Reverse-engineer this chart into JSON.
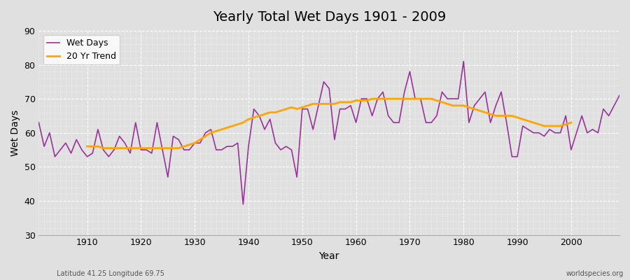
{
  "title": "Yearly Total Wet Days 1901 - 2009",
  "xlabel": "Year",
  "ylabel": "Wet Days",
  "footnote_left": "Latitude 41.25 Longitude 69.75",
  "footnote_right": "worldspecies.org",
  "legend_wet_days": "Wet Days",
  "legend_trend": "20 Yr Trend",
  "line_color_wet": "#993399",
  "line_color_trend": "#FFA500",
  "bg_color": "#e0e0e0",
  "plot_bg_color": "#e0e0e0",
  "ylim": [
    30,
    90
  ],
  "xlim": [
    1901,
    2009
  ],
  "yticks": [
    30,
    40,
    50,
    60,
    70,
    80,
    90
  ],
  "xticks": [
    1910,
    1920,
    1930,
    1940,
    1950,
    1960,
    1970,
    1980,
    1990,
    2000
  ],
  "years": [
    1901,
    1902,
    1903,
    1904,
    1905,
    1906,
    1907,
    1908,
    1909,
    1910,
    1911,
    1912,
    1913,
    1914,
    1915,
    1916,
    1917,
    1918,
    1919,
    1920,
    1921,
    1922,
    1923,
    1924,
    1925,
    1926,
    1927,
    1928,
    1929,
    1930,
    1931,
    1932,
    1933,
    1934,
    1935,
    1936,
    1937,
    1938,
    1939,
    1940,
    1941,
    1942,
    1943,
    1944,
    1945,
    1946,
    1947,
    1948,
    1949,
    1950,
    1951,
    1952,
    1953,
    1954,
    1955,
    1956,
    1957,
    1958,
    1959,
    1960,
    1961,
    1962,
    1963,
    1964,
    1965,
    1966,
    1967,
    1968,
    1969,
    1970,
    1971,
    1972,
    1973,
    1974,
    1975,
    1976,
    1977,
    1978,
    1979,
    1980,
    1981,
    1982,
    1983,
    1984,
    1985,
    1986,
    1987,
    1988,
    1989,
    1990,
    1991,
    1992,
    1993,
    1994,
    1995,
    1996,
    1997,
    1998,
    1999,
    2000,
    2001,
    2002,
    2003,
    2004,
    2005,
    2006,
    2007,
    2008,
    2009
  ],
  "wet_days": [
    63,
    56,
    60,
    53,
    55,
    57,
    54,
    58,
    55,
    53,
    54,
    61,
    55,
    53,
    55,
    59,
    57,
    54,
    63,
    55,
    55,
    54,
    63,
    55,
    47,
    59,
    58,
    55,
    55,
    57,
    57,
    60,
    61,
    55,
    55,
    56,
    56,
    57,
    39,
    56,
    67,
    65,
    61,
    64,
    57,
    55,
    56,
    55,
    47,
    67,
    67,
    61,
    68,
    75,
    73,
    58,
    67,
    67,
    68,
    63,
    70,
    70,
    65,
    70,
    72,
    65,
    63,
    63,
    72,
    78,
    70,
    70,
    63,
    63,
    65,
    72,
    70,
    70,
    70,
    81,
    63,
    68,
    70,
    72,
    63,
    68,
    72,
    63,
    53,
    53,
    62,
    61,
    60,
    60,
    59,
    61,
    60,
    60,
    65,
    55,
    60,
    65,
    60,
    61,
    60,
    67,
    65,
    68,
    71
  ],
  "trend_years": [
    1910,
    1911,
    1912,
    1913,
    1914,
    1915,
    1916,
    1917,
    1918,
    1919,
    1920,
    1921,
    1922,
    1923,
    1924,
    1925,
    1926,
    1927,
    1928,
    1929,
    1930,
    1931,
    1932,
    1933,
    1934,
    1935,
    1936,
    1937,
    1938,
    1939,
    1940,
    1941,
    1942,
    1943,
    1944,
    1945,
    1946,
    1947,
    1948,
    1949,
    1950,
    1951,
    1952,
    1953,
    1954,
    1955,
    1956,
    1957,
    1958,
    1959,
    1960,
    1961,
    1962,
    1963,
    1964,
    1965,
    1966,
    1967,
    1968,
    1969,
    1970,
    1971,
    1972,
    1973,
    1974,
    1975,
    1976,
    1977,
    1978,
    1979,
    1980,
    1981,
    1982,
    1983,
    1984,
    1985,
    1986,
    1987,
    1988,
    1989,
    1990,
    1991,
    1992,
    1993,
    1994,
    1995,
    1996,
    1997,
    1998,
    1999,
    2000
  ],
  "trend_values": [
    56.0,
    56.0,
    56.0,
    55.5,
    55.5,
    55.5,
    55.5,
    55.5,
    55.5,
    55.5,
    55.5,
    55.5,
    55.5,
    55.5,
    55.5,
    55.5,
    55.5,
    55.5,
    56.0,
    56.5,
    57.0,
    58.0,
    59.0,
    60.0,
    60.5,
    61.0,
    61.5,
    62.0,
    62.5,
    63.0,
    64.0,
    64.5,
    65.0,
    65.5,
    66.0,
    66.0,
    66.5,
    67.0,
    67.5,
    67.0,
    67.5,
    68.0,
    68.5,
    68.5,
    68.5,
    68.5,
    68.5,
    69.0,
    69.0,
    69.0,
    69.5,
    69.5,
    69.5,
    70.0,
    70.0,
    70.0,
    70.0,
    70.0,
    70.0,
    70.0,
    70.0,
    70.0,
    70.0,
    70.0,
    70.0,
    69.5,
    69.0,
    68.5,
    68.0,
    68.0,
    68.0,
    67.5,
    67.0,
    66.5,
    66.0,
    65.5,
    65.0,
    65.0,
    65.0,
    65.0,
    64.5,
    64.0,
    63.5,
    63.0,
    62.5,
    62.0,
    62.0,
    62.0,
    62.0,
    62.5,
    63.0
  ]
}
